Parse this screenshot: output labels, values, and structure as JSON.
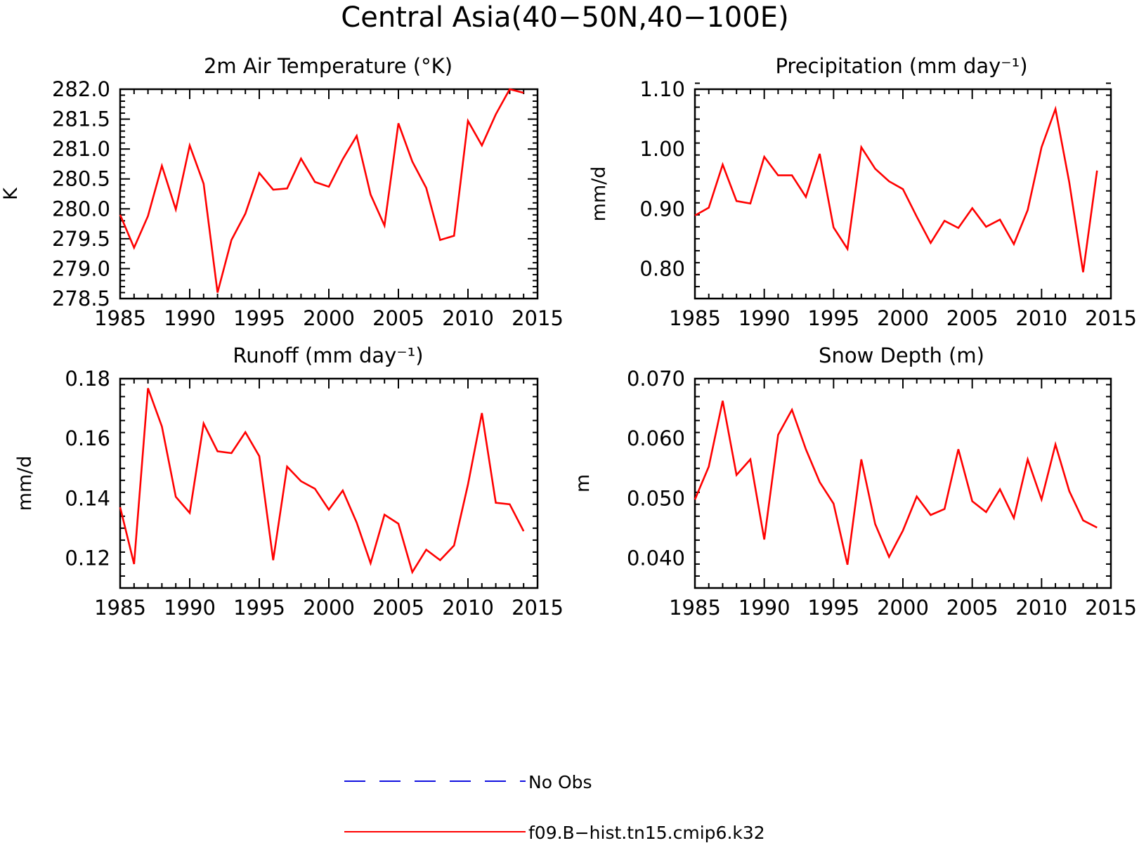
{
  "title": "Central Asia(40−50N,40−100E)",
  "legend": {
    "items": [
      {
        "label": "No Obs",
        "color": "#1010e0",
        "style": "dashed"
      },
      {
        "label": "f09.B−hist.tn15.cmip6.k32",
        "color": "#ff0000",
        "style": "solid"
      }
    ]
  },
  "chart_data": [
    {
      "type": "line",
      "title": "2m Air Temperature (°K)",
      "ylabel": "K",
      "xlim": [
        1985,
        2015
      ],
      "xticks": [
        1985,
        1990,
        1995,
        2000,
        2005,
        2010,
        2015
      ],
      "ylim": [
        278.5,
        282.0
      ],
      "yticks": [
        "278.5",
        "279.0",
        "279.5",
        "280.0",
        "280.5",
        "281.0",
        "281.5",
        "282.0"
      ],
      "series": [
        {
          "name": "f09.B−hist.tn15.cmip6.k32",
          "color": "#ff0000",
          "x": [
            1985,
            1986,
            1987,
            1988,
            1989,
            1990,
            1991,
            1992,
            1993,
            1994,
            1995,
            1996,
            1997,
            1998,
            1999,
            2000,
            2001,
            2002,
            2003,
            2004,
            2005,
            2006,
            2007,
            2008,
            2009,
            2010,
            2011,
            2012,
            2013,
            2014
          ],
          "values": [
            279.9,
            279.35,
            279.88,
            280.72,
            279.99,
            281.06,
            280.42,
            278.6,
            279.48,
            279.92,
            280.6,
            280.32,
            280.34,
            280.84,
            280.45,
            280.37,
            280.83,
            281.22,
            280.24,
            279.72,
            281.43,
            280.79,
            280.35,
            279.48,
            279.55,
            281.47,
            281.06,
            281.58,
            282.0,
            281.94
          ]
        }
      ]
    },
    {
      "type": "line",
      "title": "Precipitation (mm day⁻¹)",
      "ylabel": "mm/d",
      "xlim": [
        1985,
        2015
      ],
      "xticks": [
        1985,
        1990,
        1995,
        2000,
        2005,
        2010,
        2015
      ],
      "ylim": [
        0.75,
        1.1
      ],
      "yticks": [
        "0.80",
        "0.90",
        "1.00",
        "1.10"
      ],
      "series": [
        {
          "name": "f09.B−hist.tn15.cmip6.k32",
          "color": "#ff0000",
          "x": [
            1985,
            1986,
            1987,
            1988,
            1989,
            1990,
            1991,
            1992,
            1993,
            1994,
            1995,
            1996,
            1997,
            1998,
            1999,
            2000,
            2001,
            2002,
            2003,
            2004,
            2005,
            2006,
            2007,
            2008,
            2009,
            2010,
            2011,
            2012,
            2013,
            2014
          ],
          "values": [
            0.889,
            0.902,
            0.974,
            0.913,
            0.909,
            0.987,
            0.956,
            0.956,
            0.92,
            0.992,
            0.869,
            0.833,
            1.003,
            0.967,
            0.946,
            0.933,
            0.887,
            0.843,
            0.88,
            0.868,
            0.901,
            0.87,
            0.882,
            0.841,
            0.898,
            1.003,
            1.067,
            0.944,
            0.794,
            0.964
          ]
        }
      ]
    },
    {
      "type": "line",
      "title": "Runoff (mm day⁻¹)",
      "ylabel": "mm/d",
      "xlim": [
        1985,
        2015
      ],
      "xticks": [
        1985,
        1990,
        1995,
        2000,
        2005,
        2010,
        2015
      ],
      "ylim": [
        0.11,
        0.18
      ],
      "yticks": [
        "0.12",
        "0.14",
        "0.16",
        "0.18"
      ],
      "series": [
        {
          "name": "f09.B−hist.tn15.cmip6.k32",
          "color": "#ff0000",
          "x": [
            1985,
            1986,
            1987,
            1988,
            1989,
            1990,
            1991,
            1992,
            1993,
            1994,
            1995,
            1996,
            1997,
            1998,
            1999,
            2000,
            2001,
            2002,
            2003,
            2004,
            2005,
            2006,
            2007,
            2008,
            2009,
            2010,
            2011,
            2012,
            2013,
            2014
          ],
          "values": [
            0.137,
            0.118,
            0.1768,
            0.164,
            0.1405,
            0.1351,
            0.165,
            0.1557,
            0.1551,
            0.1621,
            0.1541,
            0.1193,
            0.1506,
            0.1457,
            0.1432,
            0.1362,
            0.1426,
            0.1319,
            0.1183,
            0.1345,
            0.1315,
            0.1153,
            0.1228,
            0.1193,
            0.1242,
            0.1446,
            0.1685,
            0.1385,
            0.138,
            0.129
          ]
        }
      ]
    },
    {
      "type": "line",
      "title": "Snow Depth (m)",
      "ylabel": "m",
      "xlim": [
        1985,
        2015
      ],
      "xticks": [
        1985,
        1990,
        1995,
        2000,
        2005,
        2010,
        2015
      ],
      "ylim": [
        0.035,
        0.07
      ],
      "yticks": [
        "0.040",
        "0.050",
        "0.060",
        "0.070"
      ],
      "series": [
        {
          "name": "f09.B−hist.tn15.cmip6.k32",
          "color": "#ff0000",
          "x": [
            1985,
            1986,
            1987,
            1988,
            1989,
            1990,
            1991,
            1992,
            1993,
            1994,
            1995,
            1996,
            1997,
            1998,
            1999,
            2000,
            2001,
            2002,
            2003,
            2004,
            2005,
            2006,
            2007,
            2008,
            2009,
            2010,
            2011,
            2012,
            2013,
            2014
          ],
          "values": [
            0.0498,
            0.0553,
            0.0663,
            0.0539,
            0.0565,
            0.0431,
            0.0606,
            0.0648,
            0.0582,
            0.0527,
            0.0491,
            0.0389,
            0.0565,
            0.0457,
            0.0402,
            0.0446,
            0.0503,
            0.0472,
            0.0482,
            0.0582,
            0.0495,
            0.0477,
            0.0515,
            0.0467,
            0.0565,
            0.0498,
            0.059,
            0.0512,
            0.0463,
            0.0451
          ]
        }
      ]
    }
  ]
}
